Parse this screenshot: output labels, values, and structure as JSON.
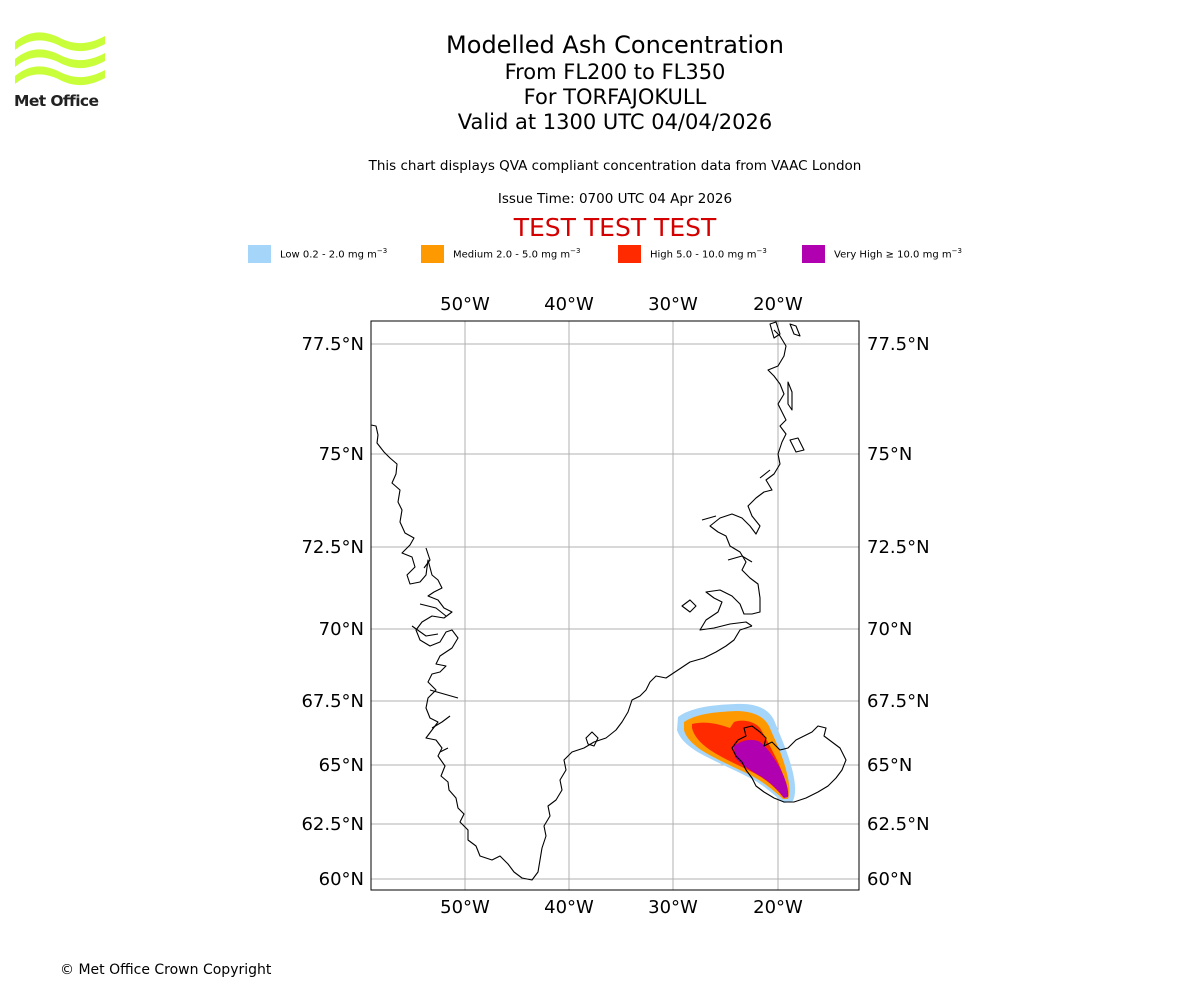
{
  "logo": {
    "text": "Met Office",
    "color": "#c8ff3a"
  },
  "title": {
    "main": "Modelled Ash Concentration",
    "levels": "From FL200 to FL350",
    "volcano": "For TORFAJOKULL",
    "valid": "Valid at 1300 UTC 04/04/2026"
  },
  "disclaimer": "This chart displays QVA compliant concentration data from VAAC London",
  "issue_time": "Issue Time: 0700 UTC 04 Apr 2026",
  "test_banner": "TEST TEST TEST",
  "legend": [
    {
      "label": "Low 0.2 - 2.0 mg m",
      "exp": "−3",
      "color": "#a6d5fa"
    },
    {
      "label": "Medium 2.0 - 5.0 mg m",
      "exp": "−3",
      "color": "#ff9900"
    },
    {
      "label": "High 5.0 - 10.0 mg m",
      "exp": "−3",
      "color": "#ff2a00"
    },
    {
      "label": "Very High  ≥  10.0 mg m",
      "exp": "−3",
      "color": "#b000b0"
    }
  ],
  "map": {
    "lon_ticks_top": [
      "50°W",
      "40°W",
      "30°W",
      "20°W"
    ],
    "lon_ticks_bottom": [
      "50°W",
      "40°W",
      "30°W",
      "20°W"
    ],
    "lat_ticks_left": [
      "77.5°N",
      "75°N",
      "72.5°N",
      "70°N",
      "67.5°N",
      "65°N",
      "62.5°N",
      "60°N"
    ],
    "lat_ticks_right": [
      "77.5°N",
      "75°N",
      "72.5°N",
      "70°N",
      "67.5°N",
      "65°N",
      "62.5°N",
      "60°N"
    ],
    "grid_on": true
  },
  "copyright": "© Met Office Crown Copyright"
}
